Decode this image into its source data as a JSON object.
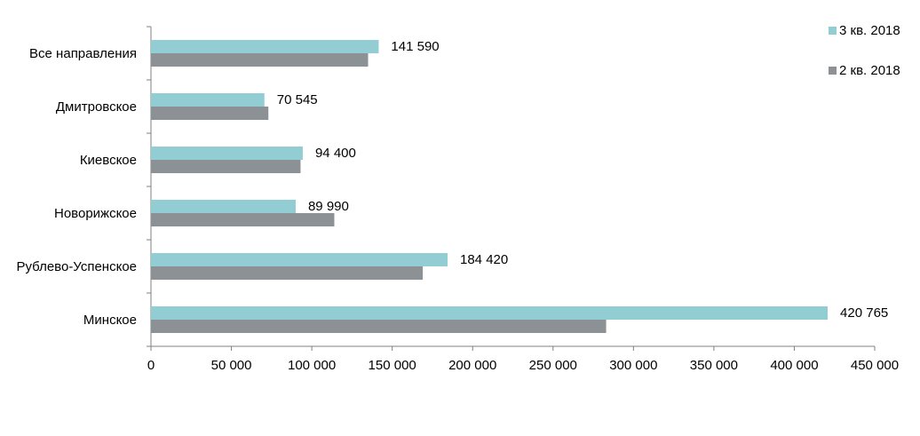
{
  "chart_data": {
    "type": "bar",
    "orientation": "horizontal",
    "categories": [
      "Все направления",
      "Дмитровское",
      "Киевское",
      "Новорижское",
      "Рублево-Успенское",
      "Минское"
    ],
    "series": [
      {
        "name": "3 кв. 2018",
        "color": "#93CDD4",
        "values": [
          141590,
          70545,
          94400,
          89990,
          184420,
          420765
        ],
        "labels": [
          "141 590",
          "70 545",
          "94 400",
          "89 990",
          "184 420",
          "420 765"
        ]
      },
      {
        "name": "2 кв. 2018",
        "color": "#8C9196",
        "values": [
          135000,
          73000,
          93000,
          114000,
          169000,
          283000
        ]
      }
    ],
    "xlim": [
      0,
      450000
    ],
    "xticks": [
      0,
      50000,
      100000,
      150000,
      200000,
      250000,
      300000,
      350000,
      400000,
      450000
    ],
    "xtick_labels": [
      "0",
      "50 000",
      "100 000",
      "150 000",
      "200 000",
      "250 000",
      "300 000",
      "350 000",
      "400 000",
      "450 000"
    ],
    "grid": false,
    "legend_position": "top-right",
    "axis_color": "#808080"
  }
}
